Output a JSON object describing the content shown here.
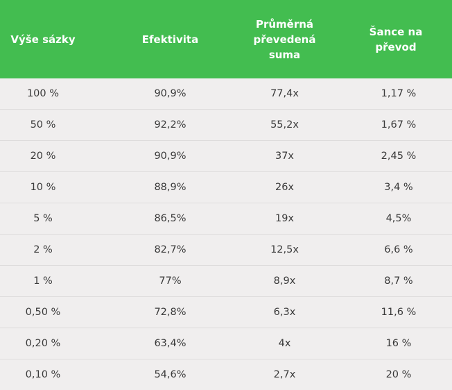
{
  "colors": {
    "header_bg": "#43bd50",
    "header_text": "#ffffff",
    "body_bg": "#f0eeee",
    "row_divider": "#dedcdc",
    "cell_text": "#3a3a3a"
  },
  "table": {
    "headers": [
      "Výše sázky",
      "Efektivita",
      "Průměrná\npřevedená\nsuma",
      "Šance na\npřevod"
    ],
    "rows": [
      [
        "100 %",
        "90,9%",
        "77,4x",
        "1,17 %"
      ],
      [
        "50 %",
        "92,2%",
        "55,2x",
        "1,67 %"
      ],
      [
        "20 %",
        "90,9%",
        "37x",
        "2,45 %"
      ],
      [
        "10 %",
        "88,9%",
        "26x",
        "3,4 %"
      ],
      [
        "5 %",
        "86,5%",
        "19x",
        "4,5%"
      ],
      [
        "2 %",
        "82,7%",
        "12,5x",
        "6,6 %"
      ],
      [
        "1 %",
        "77%",
        "8,9x",
        "8,7 %"
      ],
      [
        "0,50 %",
        "72,8%",
        "6,3x",
        "11,6 %"
      ],
      [
        "0,20 %",
        "63,4%",
        "4x",
        "16 %"
      ],
      [
        "0,10 %",
        "54,6%",
        "2,7x",
        "20 %"
      ]
    ]
  }
}
